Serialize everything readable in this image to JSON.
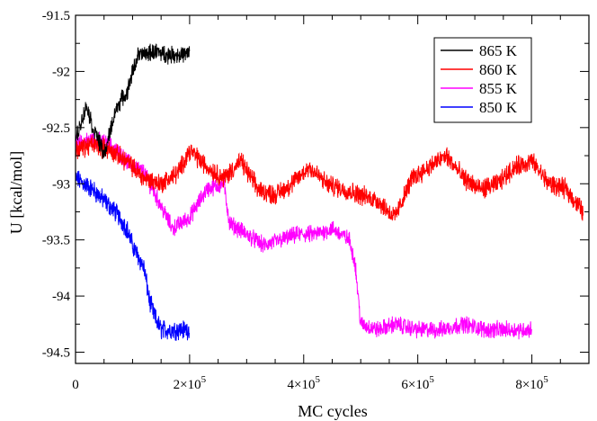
{
  "chart_data": {
    "type": "line",
    "title": "",
    "xlabel": "MC cycles",
    "ylabel": "U [kcal/mol]",
    "xlim": [
      0,
      900000
    ],
    "ylim": [
      -94.6,
      -91.5
    ],
    "x_ticks": [
      {
        "value": 0,
        "label": "0"
      },
      {
        "value": 200000,
        "base": "2×10",
        "exp": "5"
      },
      {
        "value": 400000,
        "base": "4×10",
        "exp": "5"
      },
      {
        "value": 600000,
        "base": "6×10",
        "exp": "5"
      },
      {
        "value": 800000,
        "base": "8×10",
        "exp": "5"
      }
    ],
    "y_ticks": [
      {
        "value": -91.5,
        "label": "-91.5"
      },
      {
        "value": -92,
        "label": "-92"
      },
      {
        "value": -92.5,
        "label": "-92.5"
      },
      {
        "value": -93,
        "label": "-93"
      },
      {
        "value": -93.5,
        "label": "-93.5"
      },
      {
        "value": -94,
        "label": "-94"
      },
      {
        "value": -94.5,
        "label": "-94.5"
      }
    ],
    "grid": false,
    "legend_position": "top-right",
    "series": [
      {
        "name": "865 K",
        "color": "#000000",
        "noise": 0.06,
        "x": [
          0,
          10000,
          20000,
          30000,
          40000,
          50000,
          60000,
          70000,
          80000,
          90000,
          100000,
          110000,
          120000,
          140000,
          160000,
          180000,
          200000
        ],
        "y": [
          -92.6,
          -92.45,
          -92.3,
          -92.5,
          -92.6,
          -92.75,
          -92.55,
          -92.35,
          -92.25,
          -92.2,
          -92.0,
          -91.85,
          -91.85,
          -91.82,
          -91.85,
          -91.85,
          -91.85
        ]
      },
      {
        "name": "860 K",
        "color": "#ff0000",
        "noise": 0.07,
        "x": [
          0,
          30000,
          60000,
          90000,
          120000,
          150000,
          180000,
          200000,
          230000,
          260000,
          290000,
          320000,
          350000,
          380000,
          410000,
          440000,
          470000,
          500000,
          530000,
          560000,
          590000,
          620000,
          650000,
          680000,
          710000,
          740000,
          770000,
          800000,
          830000,
          860000,
          890000
        ],
        "y": [
          -92.7,
          -92.65,
          -92.7,
          -92.8,
          -92.95,
          -93.0,
          -92.9,
          -92.7,
          -92.85,
          -92.95,
          -92.8,
          -93.05,
          -93.1,
          -93.0,
          -92.85,
          -93.0,
          -93.05,
          -93.1,
          -93.15,
          -93.3,
          -92.95,
          -92.85,
          -92.75,
          -92.95,
          -93.05,
          -93.0,
          -92.85,
          -92.8,
          -93.0,
          -93.05,
          -93.25
        ]
      },
      {
        "name": "855 K",
        "color": "#ff00ff",
        "noise": 0.06,
        "x": [
          0,
          30000,
          60000,
          90000,
          120000,
          150000,
          170000,
          200000,
          230000,
          260000,
          270000,
          300000,
          330000,
          360000,
          390000,
          420000,
          450000,
          480000,
          490000,
          500000,
          530000,
          560000,
          600000,
          640000,
          680000,
          720000,
          760000,
          800000
        ],
        "y": [
          -92.65,
          -92.6,
          -92.65,
          -92.8,
          -92.9,
          -93.2,
          -93.4,
          -93.3,
          -93.05,
          -93.0,
          -93.35,
          -93.45,
          -93.55,
          -93.5,
          -93.45,
          -93.45,
          -93.4,
          -93.5,
          -93.7,
          -94.25,
          -94.3,
          -94.25,
          -94.3,
          -94.3,
          -94.25,
          -94.3,
          -94.3,
          -94.3
        ]
      },
      {
        "name": "850 K",
        "color": "#0000ff",
        "noise": 0.07,
        "x": [
          0,
          15000,
          30000,
          50000,
          70000,
          90000,
          100000,
          110000,
          120000,
          130000,
          140000,
          150000,
          170000,
          200000
        ],
        "y": [
          -92.95,
          -93.0,
          -93.05,
          -93.15,
          -93.25,
          -93.4,
          -93.55,
          -93.65,
          -93.75,
          -94.05,
          -94.2,
          -94.3,
          -94.3,
          -94.3
        ]
      }
    ]
  }
}
